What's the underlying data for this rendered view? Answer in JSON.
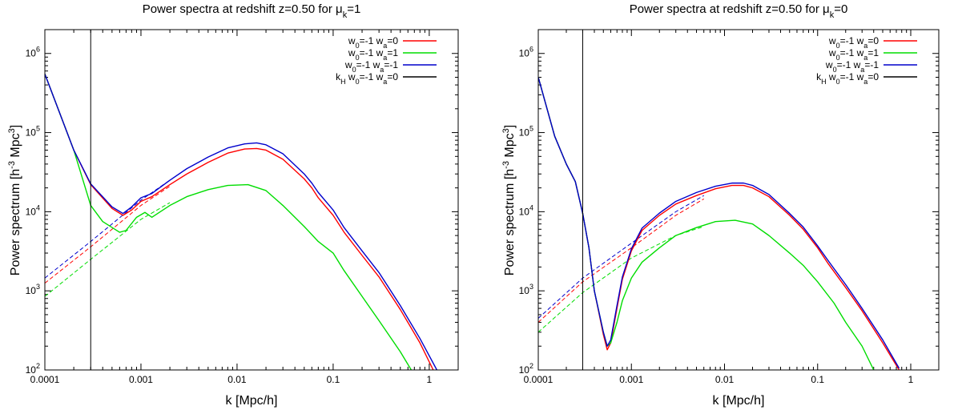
{
  "chart_data": [
    {
      "type": "line",
      "title": {
        "main": "Power spectra at redshift z=0.50 for μ",
        "sub": "k",
        "tail": "=1"
      },
      "xlabel": "k [Mpc/h]",
      "ylabel": {
        "a": "Power spectrum [h",
        "sup1": "-3",
        "b": " Mpc",
        "sup2": "3",
        "c": "]"
      },
      "xscale": "log",
      "yscale": "log",
      "xlim": [
        0.0001,
        2.0
      ],
      "ylim": [
        100,
        2000000
      ],
      "xticks": [
        {
          "v": 0.0001,
          "label": "0.0001"
        },
        {
          "v": 0.001,
          "label": "0.001"
        },
        {
          "v": 0.01,
          "label": "0.01"
        },
        {
          "v": 0.1,
          "label": "0.1"
        },
        {
          "v": 1,
          "label": "1"
        }
      ],
      "yticks": [
        {
          "v": 100,
          "m": "10",
          "e": "2"
        },
        {
          "v": 1000,
          "m": "10",
          "e": "3"
        },
        {
          "v": 10000,
          "m": "10",
          "e": "4"
        },
        {
          "v": 100000,
          "m": "10",
          "e": "5"
        },
        {
          "v": 1000000,
          "m": "10",
          "e": "6"
        }
      ],
      "legend_position": "top-right",
      "vline": {
        "x": 0.0003,
        "name": {
          "k": "k",
          "sub": "H",
          "w0": "w",
          "w0s": "0",
          "w0v": "=-1 w",
          "was": "a",
          "wav": "=0"
        },
        "color": "#000000"
      },
      "series": [
        {
          "name": {
            "a": "w",
            "s1": "0",
            "b": "=-1 w",
            "s2": "a",
            "c": "=0"
          },
          "color": "#ff0000",
          "x": [
            0.0001,
            0.0002,
            0.0003,
            0.0005,
            0.00065,
            0.0008,
            0.001,
            0.0013,
            0.002,
            0.003,
            0.005,
            0.008,
            0.012,
            0.016,
            0.02,
            0.03,
            0.05,
            0.06,
            0.07,
            0.1,
            0.13,
            0.2,
            0.3,
            0.5,
            0.8,
            1.1
          ],
          "values": [
            550000,
            60000,
            22000,
            11000,
            9000,
            10500,
            13500,
            15500,
            22000,
            30000,
            42000,
            55000,
            62000,
            63000,
            60000,
            46000,
            26000,
            20000,
            15000,
            9000,
            5500,
            2800,
            1500,
            580,
            220,
            100
          ],
          "dashed": {
            "x": [
              0.0001,
              0.0003,
              0.001,
              0.002
            ],
            "values": [
              1250,
              3600,
              12000,
              21000
            ]
          }
        },
        {
          "name": {
            "a": "w",
            "s1": "0",
            "b": "=-1 w",
            "s2": "a",
            "c": "=1"
          },
          "color": "#00dd00",
          "x": [
            0.0001,
            0.0002,
            0.0003,
            0.0004,
            0.0006,
            0.0007,
            0.0009,
            0.0011,
            0.0013,
            0.002,
            0.003,
            0.005,
            0.008,
            0.013,
            0.02,
            0.03,
            0.05,
            0.07,
            0.1,
            0.13,
            0.2,
            0.3,
            0.5,
            0.65
          ],
          "values": [
            550000,
            60000,
            12000,
            7500,
            5500,
            5800,
            8500,
            9800,
            8500,
            12000,
            15500,
            19000,
            21500,
            22000,
            18500,
            12000,
            6500,
            4200,
            3000,
            1800,
            850,
            420,
            170,
            100
          ],
          "dashed": {
            "x": [
              0.0001,
              0.0003,
              0.001,
              0.002
            ],
            "values": [
              850,
              2500,
              8000,
              13000
            ]
          }
        },
        {
          "name": {
            "a": "w",
            "s1": "0",
            "b": "=-1 w",
            "s2": "a",
            "c": "=-1"
          },
          "color": "#0000cc",
          "x": [
            0.0001,
            0.0002,
            0.0003,
            0.0005,
            0.00065,
            0.0008,
            0.001,
            0.0013,
            0.002,
            0.003,
            0.005,
            0.008,
            0.012,
            0.016,
            0.02,
            0.03,
            0.05,
            0.06,
            0.07,
            0.1,
            0.13,
            0.2,
            0.3,
            0.5,
            0.8,
            1.2
          ],
          "values": [
            550000,
            60000,
            22500,
            11500,
            9500,
            11500,
            15000,
            17000,
            25000,
            35000,
            49000,
            64000,
            72000,
            74000,
            70000,
            54000,
            30000,
            23000,
            17500,
            10500,
            6300,
            3200,
            1700,
            650,
            250,
            100
          ],
          "dashed": {
            "x": [
              0.0001,
              0.0003,
              0.001,
              0.002
            ],
            "values": [
              1450,
              4200,
              14000,
              25000
            ]
          }
        }
      ]
    },
    {
      "type": "line",
      "title": {
        "main": "Power spectra at redshift z=0.50 for μ",
        "sub": "k",
        "tail": "=0"
      },
      "xlabel": "k [Mpc/h]",
      "ylabel": {
        "a": "Power spectrum [h",
        "sup1": "-3",
        "b": " Mpc",
        "sup2": "3",
        "c": "]"
      },
      "xscale": "log",
      "yscale": "log",
      "xlim": [
        0.0001,
        2.0
      ],
      "ylim": [
        100,
        2000000
      ],
      "xticks": [
        {
          "v": 0.0001,
          "label": "0.0001"
        },
        {
          "v": 0.001,
          "label": "0.001"
        },
        {
          "v": 0.01,
          "label": "0.01"
        },
        {
          "v": 0.1,
          "label": "0.1"
        },
        {
          "v": 1,
          "label": "1"
        }
      ],
      "yticks": [
        {
          "v": 100,
          "m": "10",
          "e": "2"
        },
        {
          "v": 1000,
          "m": "10",
          "e": "3"
        },
        {
          "v": 10000,
          "m": "10",
          "e": "4"
        },
        {
          "v": 100000,
          "m": "10",
          "e": "5"
        },
        {
          "v": 1000000,
          "m": "10",
          "e": "6"
        }
      ],
      "legend_position": "top-right",
      "vline": {
        "x": 0.0003,
        "name": {
          "k": "k",
          "sub": "H",
          "w0": "w",
          "w0s": "0",
          "w0v": "=-1 w",
          "was": "a",
          "wav": "=0"
        },
        "color": "#000000"
      },
      "series": [
        {
          "name": {
            "a": "w",
            "s1": "0",
            "b": "=-1 w",
            "s2": "a",
            "c": "=0"
          },
          "color": "#ff0000",
          "x": [
            0.0001,
            0.00015,
            0.0002,
            0.00025,
            0.0003,
            0.00035,
            0.0004,
            0.0005,
            0.00055,
            0.0006,
            0.0007,
            0.0008,
            0.001,
            0.0013,
            0.002,
            0.003,
            0.005,
            0.008,
            0.012,
            0.016,
            0.02,
            0.03,
            0.05,
            0.07,
            0.1,
            0.13,
            0.2,
            0.3,
            0.5,
            0.75
          ],
          "values": [
            500000,
            90000,
            40000,
            24000,
            9500,
            3500,
            1000,
            280,
            180,
            220,
            600,
            1400,
            3200,
            5800,
            9000,
            12500,
            16000,
            19500,
            21500,
            21500,
            20000,
            15500,
            9000,
            6000,
            3500,
            2200,
            1100,
            560,
            220,
            100
          ],
          "dashed": {
            "x": [
              0.0001,
              0.0003,
              0.001,
              0.003,
              0.006
            ],
            "values": [
              400,
              1300,
              3500,
              9000,
              14500
            ]
          }
        },
        {
          "name": {
            "a": "w",
            "s1": "0",
            "b": "=-1 w",
            "s2": "a",
            "c": "=1"
          },
          "color": "#00dd00",
          "x": [
            0.0001,
            0.00015,
            0.0002,
            0.00025,
            0.0003,
            0.00035,
            0.0004,
            0.0005,
            0.00055,
            0.0006,
            0.0007,
            0.0008,
            0.001,
            0.0013,
            0.002,
            0.003,
            0.005,
            0.008,
            0.013,
            0.02,
            0.03,
            0.05,
            0.07,
            0.1,
            0.15,
            0.2,
            0.3,
            0.4
          ],
          "values": [
            500000,
            90000,
            40000,
            24000,
            9500,
            3500,
            1000,
            300,
            200,
            220,
            400,
            750,
            1450,
            2300,
            3500,
            5000,
            6300,
            7500,
            7800,
            7000,
            5000,
            3000,
            2100,
            1300,
            700,
            400,
            200,
            100
          ],
          "dashed": {
            "x": [
              0.0001,
              0.0003,
              0.001,
              0.003,
              0.006
            ],
            "values": [
              300,
              950,
              2600,
              5000,
              6500
            ]
          }
        },
        {
          "name": {
            "a": "w",
            "s1": "0",
            "b": "=-1 w",
            "s2": "a",
            "c": "=-1"
          },
          "color": "#0000cc",
          "x": [
            0.0001,
            0.00015,
            0.0002,
            0.00025,
            0.0003,
            0.00035,
            0.0004,
            0.0005,
            0.00055,
            0.0006,
            0.0007,
            0.0008,
            0.001,
            0.0013,
            0.002,
            0.003,
            0.005,
            0.008,
            0.012,
            0.016,
            0.02,
            0.03,
            0.05,
            0.07,
            0.1,
            0.13,
            0.2,
            0.3,
            0.5,
            0.75
          ],
          "values": [
            500000,
            90000,
            40000,
            24000,
            9500,
            3500,
            1000,
            300,
            200,
            240,
            650,
            1500,
            3400,
            6200,
            9600,
            13500,
            17500,
            21000,
            23000,
            23000,
            21500,
            16500,
            9500,
            6400,
            3700,
            2400,
            1200,
            600,
            240,
            105
          ],
          "dashed": {
            "x": [
              0.0001,
              0.0003,
              0.001,
              0.003,
              0.006
            ],
            "values": [
              450,
              1450,
              4000,
              10000,
              16000
            ]
          }
        }
      ]
    }
  ]
}
